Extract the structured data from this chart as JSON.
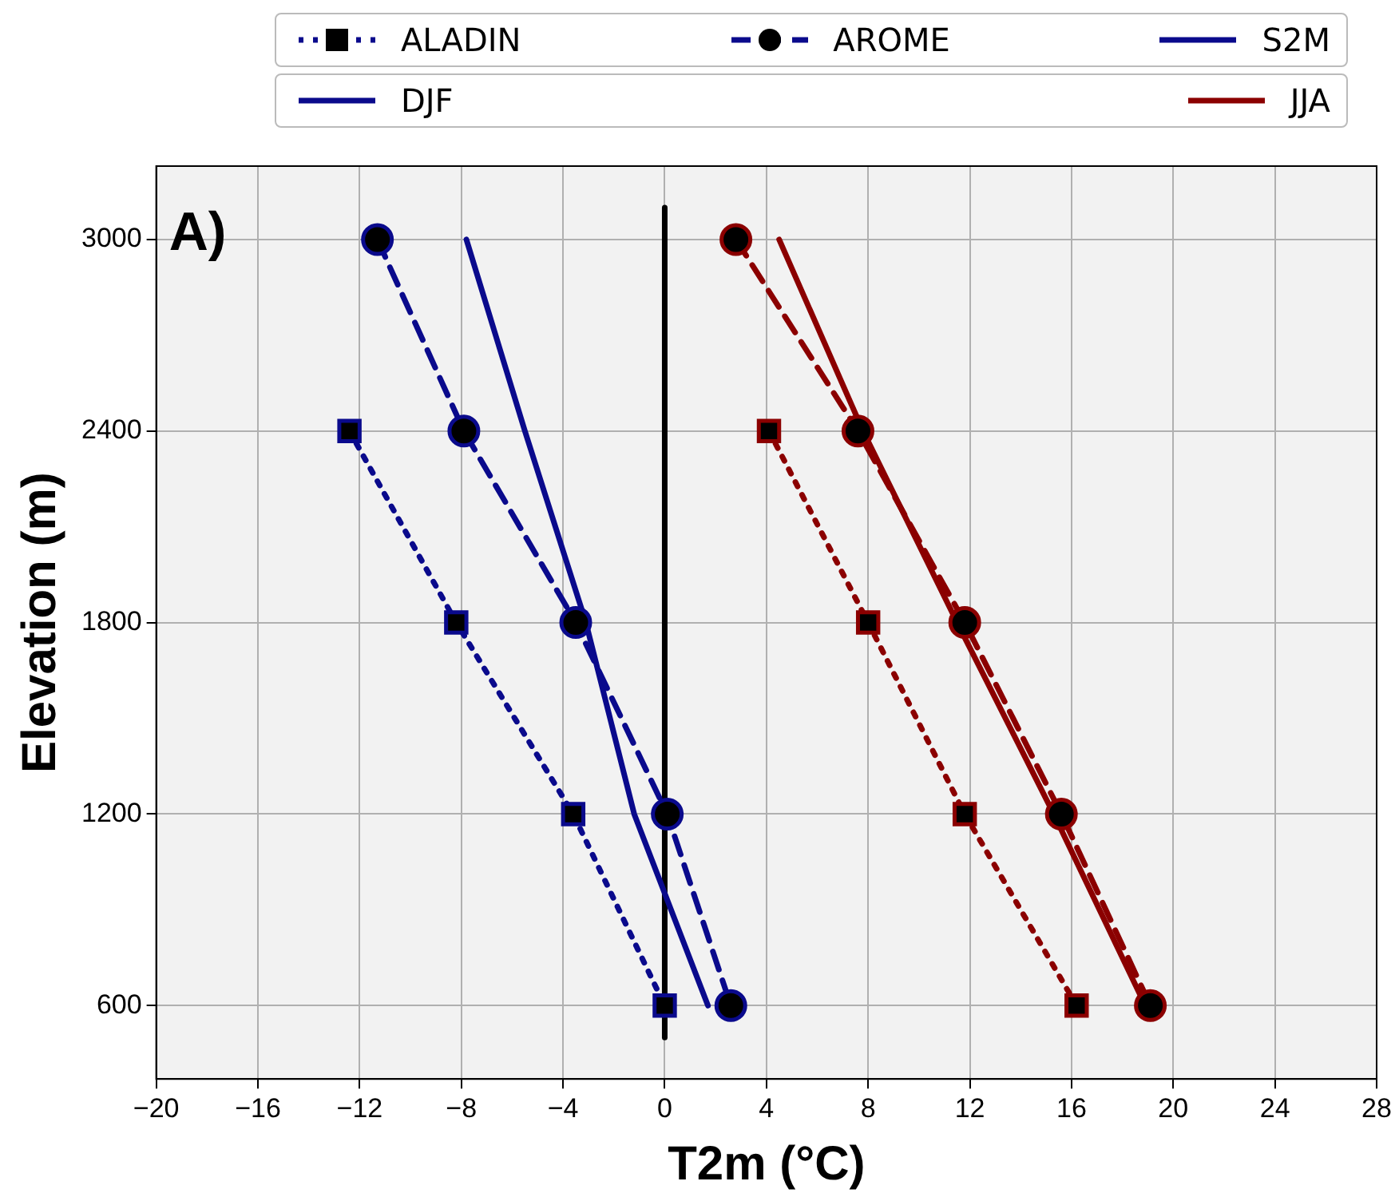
{
  "chart_data": {
    "type": "line",
    "xlabel": "T2m (°C)",
    "ylabel": "Elevation (m)",
    "annotations": [
      "A)",
      "DJF",
      "JJA"
    ],
    "xlim": [
      -20,
      28
    ],
    "xticks": [
      {
        "value": -20,
        "label": "−20"
      },
      {
        "value": -16,
        "label": "−16"
      },
      {
        "value": -12,
        "label": "−12"
      },
      {
        "value": -8,
        "label": "−8"
      },
      {
        "value": -4,
        "label": "−4"
      },
      0,
      4,
      8,
      12,
      16,
      20,
      24,
      28
    ],
    "ylim": [
      370,
      3230
    ],
    "yticks": [
      600,
      1200,
      1800,
      2400,
      3000
    ],
    "grid": true,
    "legend": "top",
    "series": [
      {
        "name": "ALADIN",
        "color": "#0a0a8c",
        "marker": "square",
        "line_style": "dotted",
        "x": [
          -12.4,
          -8.2,
          -3.6,
          0.0
        ],
        "values": [
          2400,
          1800,
          1200,
          600
        ]
      },
      {
        "name": "AROME",
        "color": "#0a0a8c",
        "marker": "circle",
        "line_style": "dashed",
        "x": [
          -11.3,
          -7.9,
          -3.5,
          0.1,
          2.6
        ],
        "values": [
          3000,
          2400,
          1800,
          1200,
          600
        ]
      },
      {
        "name": "S2M",
        "color": "#0a0a8c",
        "marker": "none",
        "line_style": "solid",
        "x": [
          -7.8,
          -5.5,
          -3.1,
          -1.2,
          1.7
        ],
        "values": [
          3000,
          2400,
          1800,
          1200,
          600
        ]
      },
      {
        "color": "#8b0000",
        "marker": "square",
        "line_style": "dotted",
        "x": [
          4.1,
          8.0,
          11.8,
          16.2
        ],
        "values": [
          2400,
          1800,
          1200,
          600
        ]
      },
      {
        "color": "#8b0000",
        "marker": "circle",
        "line_style": "dashed",
        "x": [
          2.8,
          7.6,
          11.8,
          15.6,
          19.1
        ],
        "values": [
          3000,
          2400,
          1800,
          1200,
          600
        ]
      },
      {
        "color": "#8b0000",
        "marker": "none",
        "line_style": "solid",
        "x": [
          4.5,
          7.8,
          11.5,
          15.3,
          18.9
        ],
        "values": [
          3000,
          2400,
          1800,
          1200,
          600
        ]
      },
      {
        "color": "#000000",
        "marker": "none",
        "line_style": "solid",
        "x": [
          0,
          0
        ],
        "values": [
          500,
          3100
        ]
      }
    ]
  }
}
